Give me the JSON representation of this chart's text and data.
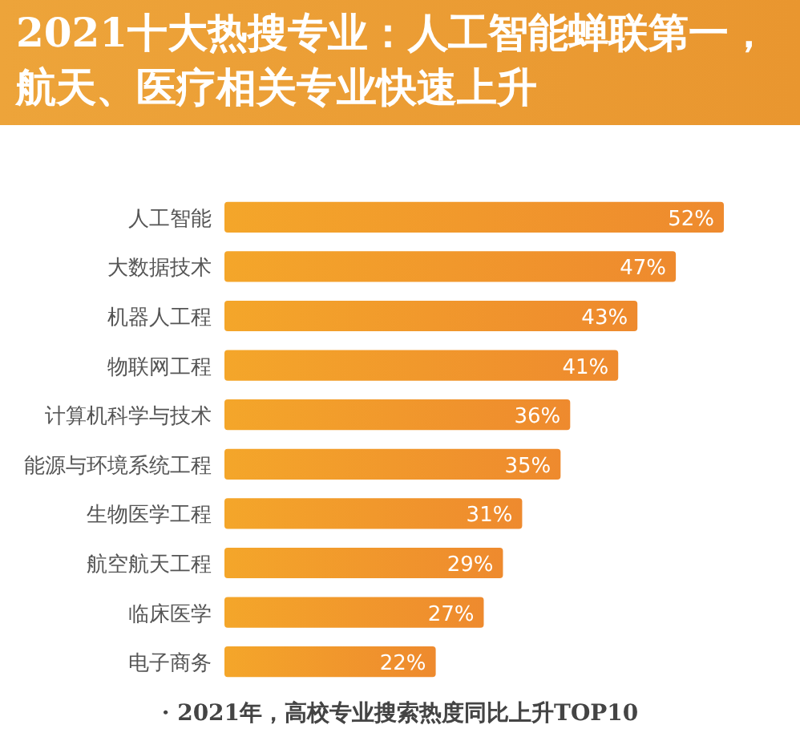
{
  "chart_data": {
    "type": "bar",
    "orientation": "horizontal",
    "title": "2021十大热搜专业：人工智能蝉联第一，航天、医疗相关专业快速上升",
    "categories": [
      "人工智能",
      "大数据技术",
      "机器人工程",
      "物联网工程",
      "计算机科学与技术",
      "能源与环境系统工程",
      "生物医学工程",
      "航空航天工程",
      "临床医学",
      "电子商务"
    ],
    "values": [
      52,
      47,
      43,
      41,
      36,
      35,
      31,
      29,
      27,
      22
    ],
    "value_labels": [
      "52%",
      "47%",
      "43%",
      "41%",
      "36%",
      "35%",
      "31%",
      "29%",
      "27%",
      "22%"
    ],
    "color": "#ee8a2e",
    "annotations": [
      "· 2021年，高校专业搜索热度同比上升TOP10"
    ]
  }
}
